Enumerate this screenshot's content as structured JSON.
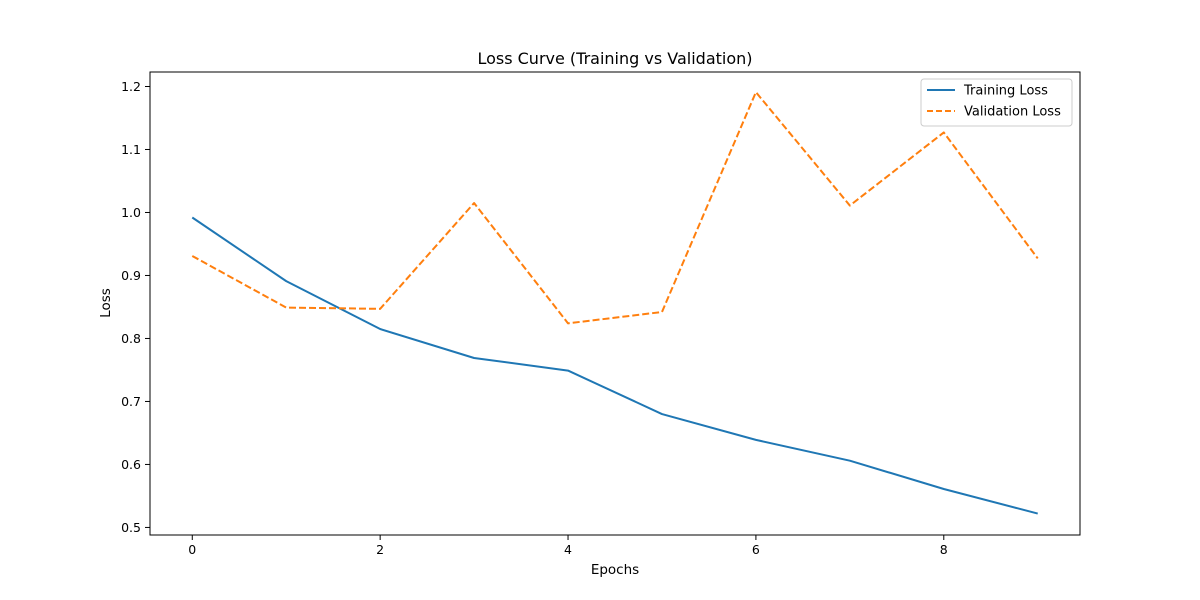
{
  "chart_data": {
    "type": "line",
    "title": "Loss Curve (Training vs Validation)",
    "xlabel": "Epochs",
    "ylabel": "Loss",
    "x": [
      0,
      1,
      2,
      3,
      4,
      5,
      6,
      7,
      8,
      9
    ],
    "xlim": [
      -0.45,
      9.45
    ],
    "ylim": [
      0.488,
      1.223
    ],
    "xticks": [
      0,
      2,
      4,
      6,
      8
    ],
    "xtick_labels": [
      "0",
      "2",
      "4",
      "6",
      "8"
    ],
    "yticks": [
      0.5,
      0.6,
      0.7,
      0.8,
      0.9,
      1.0,
      1.1,
      1.2
    ],
    "ytick_labels": [
      "0.5",
      "0.6",
      "0.7",
      "0.8",
      "0.9",
      "1.0",
      "1.1",
      "1.2"
    ],
    "grid": false,
    "legend_position": "upper right",
    "series": [
      {
        "name": "Training Loss",
        "color": "#1f77b4",
        "line_style": "solid",
        "values": [
          0.992,
          0.891,
          0.815,
          0.769,
          0.749,
          0.68,
          0.639,
          0.606,
          0.561,
          0.522
        ]
      },
      {
        "name": "Validation Loss",
        "color": "#ff7f0e",
        "line_style": "dashed",
        "values": [
          0.931,
          0.849,
          0.847,
          1.015,
          0.824,
          0.842,
          1.191,
          1.011,
          1.127,
          0.927
        ]
      }
    ]
  }
}
